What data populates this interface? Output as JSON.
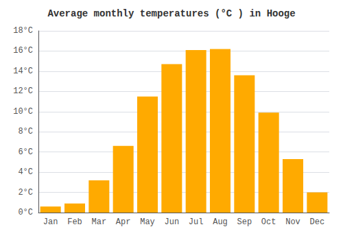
{
  "chart_data": {
    "type": "bar",
    "title": "Average monthly temperatures (°C ) in Hooge",
    "categories": [
      "Jan",
      "Feb",
      "Mar",
      "Apr",
      "May",
      "Jun",
      "Jul",
      "Aug",
      "Sep",
      "Oct",
      "Nov",
      "Dec"
    ],
    "values": [
      0.6,
      0.9,
      3.2,
      6.6,
      11.5,
      14.7,
      16.1,
      16.2,
      13.6,
      9.9,
      5.3,
      2.0
    ],
    "color": "#FFAA00",
    "ylim": [
      0,
      18
    ],
    "yticks": [
      {
        "value": 0,
        "label": "0°C"
      },
      {
        "value": 2,
        "label": "2°C"
      },
      {
        "value": 4,
        "label": "4°C"
      },
      {
        "value": 6,
        "label": "6°C"
      },
      {
        "value": 8,
        "label": "8°C"
      },
      {
        "value": 10,
        "label": "10°C"
      },
      {
        "value": 12,
        "label": "12°C"
      },
      {
        "value": 14,
        "label": "14°C"
      },
      {
        "value": 16,
        "label": "16°C"
      },
      {
        "value": 18,
        "label": "18°C"
      }
    ],
    "grid": true
  }
}
